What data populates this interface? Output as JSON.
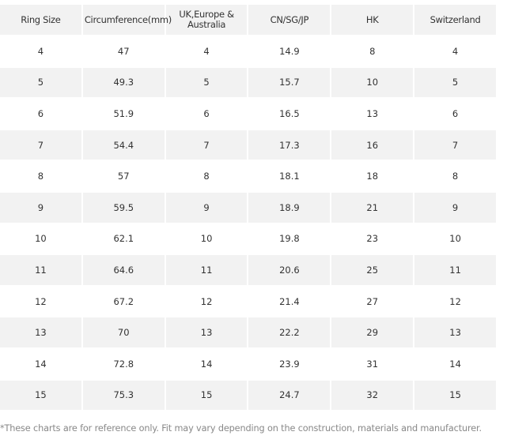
{
  "table": {
    "header": [
      "Ring Size",
      "Circumference(mm)",
      "UK,Europe & Australia",
      "CN/SG/JP",
      "HK",
      "Switzerland"
    ],
    "rows": [
      [
        "4",
        "47",
        "4",
        "14.9",
        "8",
        "4"
      ],
      [
        "5",
        "49.3",
        "5",
        "15.7",
        "10",
        "5"
      ],
      [
        "6",
        "51.9",
        "6",
        "16.5",
        "13",
        "6"
      ],
      [
        "7",
        "54.4",
        "7",
        "17.3",
        "16",
        "7"
      ],
      [
        "8",
        "57",
        "8",
        "18.1",
        "18",
        "8"
      ],
      [
        "9",
        "59.5",
        "9",
        "18.9",
        "21",
        "9"
      ],
      [
        "10",
        "62.1",
        "10",
        "19.8",
        "23",
        "10"
      ],
      [
        "11",
        "64.6",
        "11",
        "20.6",
        "25",
        "11"
      ],
      [
        "12",
        "67.2",
        "12",
        "21.4",
        "27",
        "12"
      ],
      [
        "13",
        "70",
        "13",
        "22.2",
        "29",
        "13"
      ],
      [
        "14",
        "72.8",
        "14",
        "23.9",
        "31",
        "14"
      ],
      [
        "15",
        "75.3",
        "15",
        "24.7",
        "32",
        "15"
      ]
    ]
  },
  "footnote": "*These charts are for reference only. Fit may vary depending on the construction, materials and manufacturer."
}
